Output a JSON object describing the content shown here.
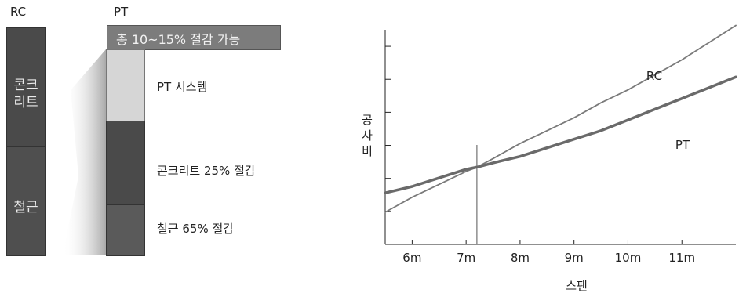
{
  "left_diagram": {
    "rc_header": "RC",
    "pt_header": "PT",
    "rc_blocks": [
      {
        "label": "콘크\n리트"
      },
      {
        "label": "철근"
      }
    ],
    "pt_banner": "총 10~15% 절감 가능",
    "pt_labels": {
      "system": "PT 시스템",
      "concrete": "콘크리트 25% 절감",
      "rebar": "철근 65% 절감"
    }
  },
  "chart_data": {
    "type": "line",
    "xlabel": "스팬",
    "ylabel": "공사비",
    "x_ticks": [
      "6m",
      "7m",
      "8m",
      "9m",
      "10m",
      "11m"
    ],
    "ylim": [
      0,
      10
    ],
    "y_tick_count": 6,
    "marker_x": 7.2,
    "series": [
      {
        "name": "RC",
        "x": [
          5.5,
          6,
          6.5,
          7,
          7.2,
          7.5,
          8,
          8.5,
          9,
          9.5,
          10,
          10.5,
          11,
          11.5,
          12
        ],
        "values": [
          1.5,
          2.2,
          2.8,
          3.4,
          3.6,
          4.0,
          4.7,
          5.3,
          5.9,
          6.6,
          7.2,
          7.9,
          8.6,
          9.4,
          10.2
        ]
      },
      {
        "name": "PT",
        "x": [
          5.5,
          6,
          6.5,
          7,
          7.2,
          7.5,
          8,
          8.5,
          9,
          9.5,
          10,
          10.5,
          11,
          11.5,
          12
        ],
        "values": [
          2.4,
          2.7,
          3.1,
          3.5,
          3.6,
          3.8,
          4.1,
          4.5,
          4.9,
          5.3,
          5.8,
          6.3,
          6.8,
          7.3,
          7.8
        ]
      }
    ]
  }
}
